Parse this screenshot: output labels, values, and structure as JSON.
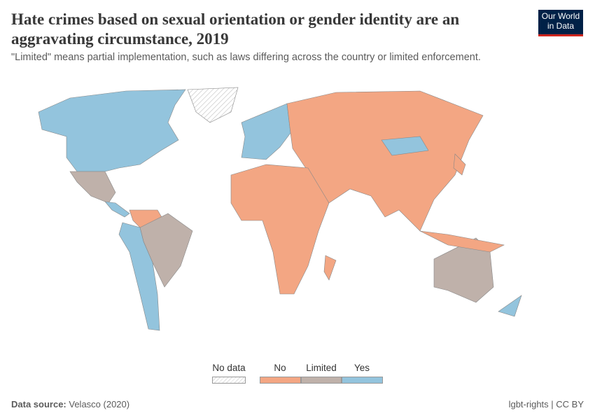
{
  "header": {
    "title": "Hate crimes based on sexual orientation or gender identity are an aggravating circumstance, 2019",
    "subtitle": "\"Limited\" means partial implementation, such as laws differing across the country or limited enforcement."
  },
  "logo": {
    "text": "Our World in Data",
    "colors": {
      "background": "#002147",
      "accent": "#ce261e"
    }
  },
  "legend": {
    "no_data": "No data",
    "categories": [
      {
        "label": "No",
        "color": "#f3a683"
      },
      {
        "label": "Limited",
        "color": "#bfb1aa"
      },
      {
        "label": "Yes",
        "color": "#93c4dd"
      }
    ]
  },
  "map_regions": [
    {
      "region": "North America (Canada, USA)",
      "category": "Yes"
    },
    {
      "region": "Greenland",
      "category": "No data"
    },
    {
      "region": "Mexico",
      "category": "Limited"
    },
    {
      "region": "Central America",
      "category": "Yes"
    },
    {
      "region": "Colombia, Venezuela",
      "category": "No"
    },
    {
      "region": "Brazil",
      "category": "Limited"
    },
    {
      "region": "Andean countries, Argentina, Chile",
      "category": "Yes"
    },
    {
      "region": "Western Europe",
      "category": "Yes"
    },
    {
      "region": "Russia, Asia",
      "category": "No"
    },
    {
      "region": "Mongolia",
      "category": "Yes"
    },
    {
      "region": "Africa",
      "category": "No"
    },
    {
      "region": "Australia",
      "category": "Limited"
    },
    {
      "region": "New Zealand",
      "category": "Yes"
    }
  ],
  "footer": {
    "source_label": "Data source:",
    "source": "Velasco (2020)",
    "license": "lgbt-rights | CC BY"
  }
}
